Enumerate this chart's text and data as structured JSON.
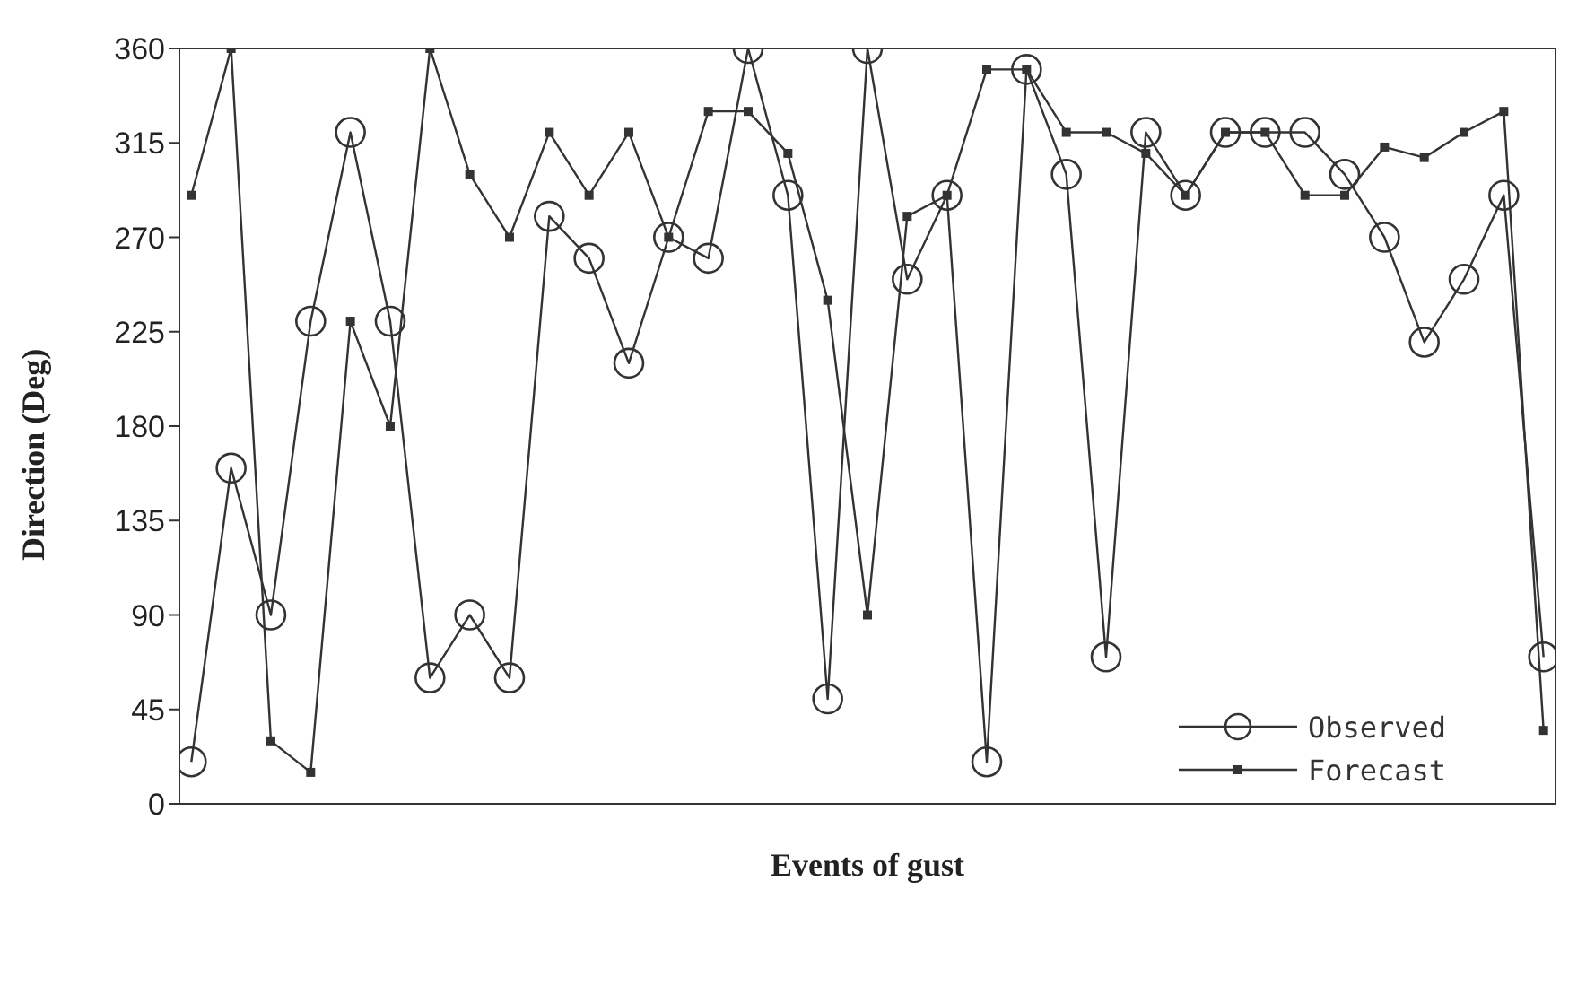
{
  "chart_data": {
    "type": "line",
    "xlabel": "Events of gust",
    "ylabel": "Direction (Deg)",
    "categories": [
      null,
      null,
      null,
      null,
      null,
      null,
      null,
      null,
      null,
      null,
      null,
      null,
      null,
      null,
      null,
      null,
      null,
      null,
      null,
      null,
      null,
      null,
      null,
      null,
      null,
      null,
      null,
      null,
      null,
      null,
      null,
      null,
      null,
      null,
      null
    ],
    "series": [
      {
        "name": "Observed",
        "color": "#333333",
        "marker": "circle",
        "values": [
          20,
          160,
          90,
          230,
          320,
          230,
          60,
          90,
          60,
          280,
          260,
          210,
          270,
          260,
          360,
          290,
          50,
          360,
          250,
          290,
          20,
          350,
          300,
          70,
          320,
          290,
          320,
          320,
          320,
          300,
          270,
          220,
          250,
          290,
          70
        ]
      },
      {
        "name": "Forecast",
        "color": "#333333",
        "marker": "square",
        "values": [
          290,
          360,
          30,
          15,
          230,
          180,
          360,
          300,
          270,
          320,
          290,
          320,
          270,
          330,
          330,
          310,
          240,
          90,
          280,
          290,
          350,
          350,
          320,
          320,
          310,
          290,
          320,
          320,
          290,
          290,
          313,
          308,
          320,
          330,
          35
        ]
      }
    ],
    "ylim": [
      0,
      360
    ],
    "yticks": [
      0,
      45,
      90,
      135,
      180,
      225,
      270,
      315,
      360
    ],
    "grid": false,
    "legend": "bottom right",
    "line_style": "solid"
  }
}
